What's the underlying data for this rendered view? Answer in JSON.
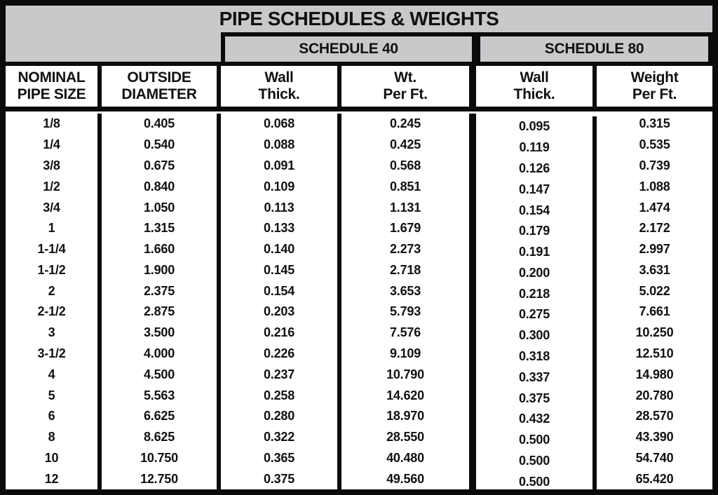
{
  "table": {
    "title": "PIPE SCHEDULES & WEIGHTS",
    "group_headers": [
      {
        "label": "SCHEDULE 40"
      },
      {
        "label": "SCHEDULE 80"
      }
    ],
    "columns": [
      {
        "key": "nominal-pipe-size",
        "line1": "NOMINAL",
        "line2": "PIPE SIZE"
      },
      {
        "key": "outside-diameter",
        "line1": "OUTSIDE",
        "line2": "DIAMETER"
      },
      {
        "key": "sch40-wall-thick",
        "line1": "Wall",
        "line2": "Thick."
      },
      {
        "key": "sch40-wt-per-ft",
        "line1": "Wt.",
        "line2": "Per Ft."
      },
      {
        "key": "sch80-wall-thick",
        "line1": "Wall",
        "line2": "Thick."
      },
      {
        "key": "sch80-weight-per-ft",
        "line1": "Weight",
        "line2": "Per Ft."
      }
    ],
    "rows": [
      [
        "1/8",
        "0.405",
        "0.068",
        "0.245",
        "0.095",
        "0.315"
      ],
      [
        "1/4",
        "0.540",
        "0.088",
        "0.425",
        "0.119",
        "0.535"
      ],
      [
        "3/8",
        "0.675",
        "0.091",
        "0.568",
        "0.126",
        "0.739"
      ],
      [
        "1/2",
        "0.840",
        "0.109",
        "0.851",
        "0.147",
        "1.088"
      ],
      [
        "3/4",
        "1.050",
        "0.113",
        "1.131",
        "0.154",
        "1.474"
      ],
      [
        "1",
        "1.315",
        "0.133",
        "1.679",
        "0.179",
        "2.172"
      ],
      [
        "1-1/4",
        "1.660",
        "0.140",
        "2.273",
        "0.191",
        "2.997"
      ],
      [
        "1-1/2",
        "1.900",
        "0.145",
        "2.718",
        "0.200",
        "3.631"
      ],
      [
        "2",
        "2.375",
        "0.154",
        "3.653",
        "0.218",
        "5.022"
      ],
      [
        "2-1/2",
        "2.875",
        "0.203",
        "5.793",
        "0.275",
        "7.661"
      ],
      [
        "3",
        "3.500",
        "0.216",
        "7.576",
        "0.300",
        "10.250"
      ],
      [
        "3-1/2",
        "4.000",
        "0.226",
        "9.109",
        "0.318",
        "12.510"
      ],
      [
        "4",
        "4.500",
        "0.237",
        "10.790",
        "0.337",
        "14.980"
      ],
      [
        "5",
        "5.563",
        "0.258",
        "14.620",
        "0.375",
        "20.780"
      ],
      [
        "6",
        "6.625",
        "0.280",
        "18.970",
        "0.432",
        "28.570"
      ],
      [
        "8",
        "8.625",
        "0.322",
        "28.550",
        "0.500",
        "43.390"
      ],
      [
        "10",
        "10.750",
        "0.365",
        "40.480",
        "0.500",
        "54.740"
      ],
      [
        "12",
        "12.750",
        "0.375",
        "49.560",
        "0.500",
        "65.420"
      ]
    ]
  },
  "colors": {
    "band_gray": "#c8c9cb",
    "border_black": "#0b0b0b",
    "cell_white": "#ffffff"
  }
}
